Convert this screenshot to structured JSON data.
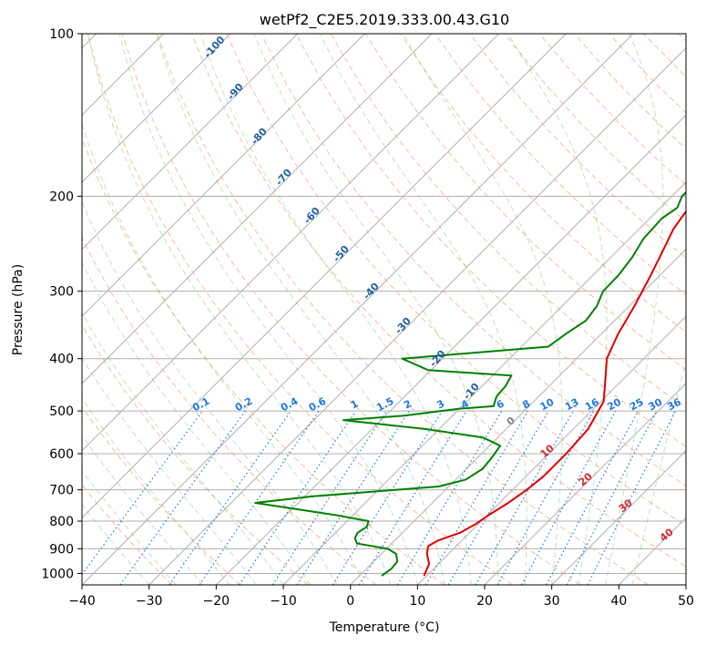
{
  "chart_data": {
    "type": "line",
    "title": "wetPf2_C2E5.2019.333.00.43.G10",
    "xlabel": "Temperature (°C)",
    "ylabel": "Pressure (hPa)",
    "xlim": [
      -40,
      50
    ],
    "ylim": [
      1050,
      100
    ],
    "y_scale": "log",
    "x_ticks": [
      "−40",
      "−30",
      "−20",
      "−10",
      "0",
      "10",
      "20",
      "30",
      "40",
      "50"
    ],
    "y_ticks": [
      "100",
      "200",
      "300",
      "400",
      "500",
      "600",
      "700",
      "800",
      "900",
      "1000"
    ],
    "grid": true,
    "series": [
      {
        "color": "#dd0000",
        "x": [
          9.6,
          8.6,
          6.8,
          5.8,
          6.4,
          8.6,
          9.6,
          10.2,
          11.3,
          12.1,
          12.6,
          12.6,
          12.2,
          10.4,
          7.6,
          4.5,
          2.5,
          0.8,
          -1.4,
          -3.4,
          -4.9,
          -5.8,
          -5.7,
          -4.5,
          -4.3,
          -3.5,
          -1.6,
          3.3,
          8.3,
          13.5,
          20.1
        ],
        "y": [
          1010,
          960,
          920,
          890,
          870,
          840,
          810,
          780,
          740,
          700,
          660,
          600,
          540,
          480,
          440,
          400,
          360,
          320,
          280,
          250,
          230,
          210,
          195,
          185,
          175,
          160,
          150,
          140,
          130,
          120,
          100
        ]
      },
      {
        "color": "#008000",
        "x": [
          3.3,
          3.7,
          3.5,
          2.2,
          0.2,
          -5.2,
          -6.3,
          -6.7,
          -6.2,
          -6.8,
          -12.5,
          -19.3,
          -26.4,
          -18.9,
          -1.5,
          1.5,
          2.4,
          2.1,
          1.6,
          -2.2,
          -12.1,
          -25.6,
          -17.2,
          -9.9,
          -5.3,
          -6.3,
          -6.5,
          -7.2,
          -20.4,
          -26.0,
          -6.0,
          -5.3,
          -4.3,
          -4.8,
          -6.1,
          -6.2,
          -6.8,
          -7.9,
          -8.2,
          -7.5,
          -8.5,
          -8.4,
          -7.4,
          -6.6,
          -6.7,
          -6.3,
          -4.1,
          2.6
        ],
        "y": [
          1010,
          980,
          950,
          920,
          900,
          880,
          860,
          840,
          820,
          800,
          780,
          760,
          740,
          720,
          690,
          670,
          640,
          610,
          580,
          560,
          540,
          520,
          510,
          495,
          490,
          470,
          450,
          430,
          420,
          400,
          380,
          360,
          340,
          320,
          300,
          280,
          260,
          240,
          220,
          210,
          200,
          190,
          180,
          170,
          160,
          150,
          130,
          100
        ]
      }
    ],
    "mixing_ratio_labels": [
      "0.1",
      "0.2",
      "0.4",
      "0.6",
      "1",
      "1.5",
      "2",
      "3",
      "4",
      "6",
      "8",
      "10",
      "13",
      "16",
      "20",
      "25",
      "30",
      "36"
    ],
    "dry_adiabat_labels": [
      "-100",
      "-90",
      "-80",
      "-70",
      "-60",
      "-50",
      "-40",
      "-30",
      "-20",
      "-10"
    ],
    "moist_adiabat_labels": [
      "0",
      "10",
      "20",
      "30",
      "40"
    ]
  }
}
